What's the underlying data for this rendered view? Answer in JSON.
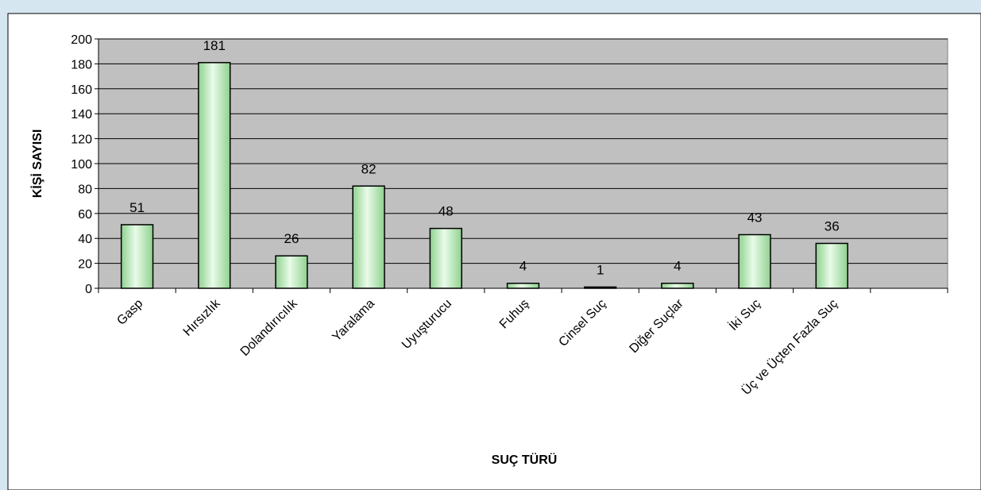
{
  "chart_data": {
    "type": "bar",
    "title": "",
    "xlabel": "SUÇ TÜRÜ",
    "ylabel": "KİŞİ SAYISI",
    "ylim": [
      0,
      200
    ],
    "yticks": [
      0,
      20,
      40,
      60,
      80,
      100,
      120,
      140,
      160,
      180,
      200
    ],
    "categories": [
      "Gasp",
      "Hırsızlık",
      "Dolandırıcılık",
      "Yaralama",
      "Uyuşturucu",
      "Fuhuş",
      "Cinsel Suç",
      "Diğer Suçlar",
      "İki Suç",
      "Üç ve Üçten Fazla Suç",
      ""
    ],
    "values": [
      51,
      181,
      26,
      82,
      48,
      4,
      1,
      4,
      43,
      36,
      null
    ],
    "data_labels": [
      "51",
      "181",
      "26",
      "82",
      "48",
      "4",
      "1",
      "4",
      "43",
      "36",
      ""
    ],
    "grid": true,
    "legend": "none"
  },
  "colors": {
    "frame_background": "#d6e6f0",
    "plot_background": "#c0c0c0",
    "bar_fill_edge": "#8fd18f",
    "bar_fill_center": "#e9fbe9",
    "bar_stroke": "#000000"
  }
}
